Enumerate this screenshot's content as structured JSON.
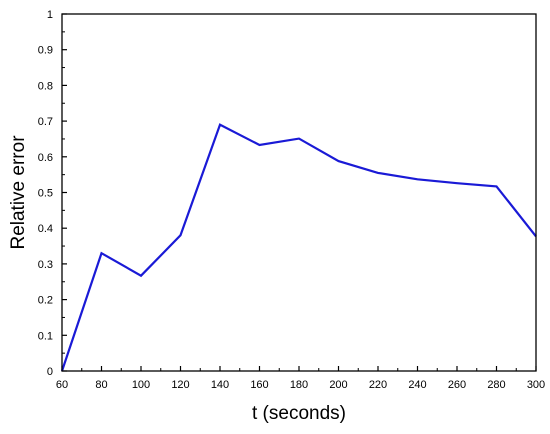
{
  "chart_data": {
    "type": "line",
    "title": "",
    "xlabel": "t (seconds)",
    "ylabel": "Relative error",
    "xlim": [
      60,
      300
    ],
    "ylim": [
      0,
      1
    ],
    "xticks": [
      60,
      80,
      100,
      120,
      140,
      160,
      180,
      200,
      220,
      240,
      260,
      280,
      300
    ],
    "yticks": [
      0,
      0.1,
      0.2,
      0.3,
      0.4,
      0.5,
      0.6,
      0.7,
      0.8,
      0.9,
      1
    ],
    "xtick_labels": [
      "60",
      "80",
      "100",
      "120",
      "140",
      "160",
      "180",
      "200",
      "220",
      "240",
      "260",
      "280",
      "300"
    ],
    "ytick_labels": [
      "0",
      "0.1",
      "0.2",
      "0.3",
      "0.4",
      "0.5",
      "0.6",
      "0.7",
      "0.8",
      "0.9",
      "1"
    ],
    "grid": false,
    "series": [
      {
        "color": "#1a1ad6",
        "x": [
          60,
          80,
          100,
          120,
          140,
          160,
          180,
          200,
          220,
          240,
          260,
          280,
          300
        ],
        "y": [
          0.0,
          0.33,
          0.267,
          0.38,
          0.69,
          0.633,
          0.651,
          0.588,
          0.555,
          0.537,
          0.526,
          0.517,
          0.377
        ]
      }
    ]
  }
}
